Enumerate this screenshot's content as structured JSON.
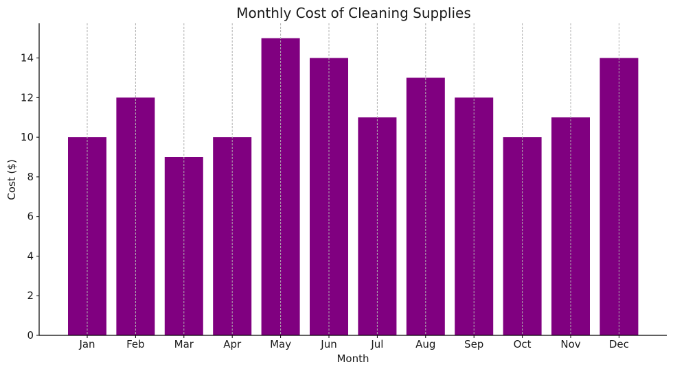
{
  "chart_data": {
    "type": "bar",
    "title": "Monthly Cost of Cleaning Supplies",
    "xlabel": "Month",
    "ylabel": "Cost ($)",
    "categories": [
      "Jan",
      "Feb",
      "Mar",
      "Apr",
      "May",
      "Jun",
      "Jul",
      "Aug",
      "Sep",
      "Oct",
      "Nov",
      "Dec"
    ],
    "values": [
      10,
      12,
      9,
      10,
      15,
      14,
      11,
      13,
      12,
      10,
      11,
      14
    ],
    "ylim": [
      0,
      15.75
    ],
    "yticks": [
      0,
      2,
      4,
      6,
      8,
      10,
      12,
      14
    ],
    "bar_color": "#800080",
    "grid": "x-dashed",
    "legend": "none"
  }
}
